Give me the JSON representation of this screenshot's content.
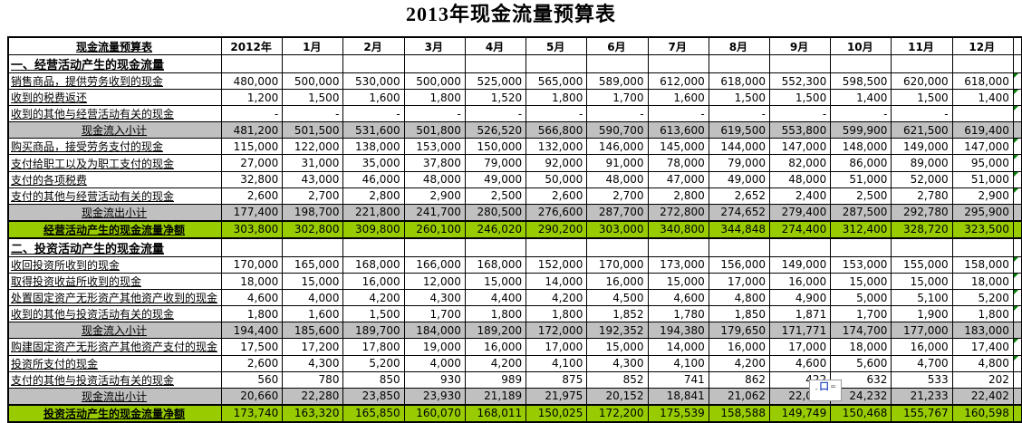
{
  "title": "2013年现金流量预算表",
  "colors": {
    "subtotal_bg": "#C0C0C0",
    "net_bg": "#99CC00",
    "flag_triangle": "#008000",
    "border": "#000000"
  },
  "overlay": {
    "left_mark": "ˍ",
    "glyph": "口",
    "right_mark": "="
  },
  "table": {
    "corner_label": "现金流量预算表",
    "columns": [
      "2012年",
      "1月",
      "2月",
      "3月",
      "4月",
      "5月",
      "6月",
      "7月",
      "8月",
      "9月",
      "10月",
      "11月",
      "12月"
    ],
    "rows": [
      {
        "type": "section",
        "label": "一、经营活动产生的现金流量",
        "flag": false,
        "values": [
          "",
          "",
          "",
          "",
          "",
          "",
          "",
          "",
          "",
          "",
          "",
          "",
          ""
        ]
      },
      {
        "type": "data",
        "label": "销售商品，提供劳务收到的现金",
        "flag": true,
        "values": [
          "480,000",
          "500,000",
          "530,000",
          "500,000",
          "525,000",
          "565,000",
          "589,000",
          "612,000",
          "618,000",
          "552,300",
          "598,500",
          "620,000",
          "618,000"
        ]
      },
      {
        "type": "data",
        "label": "收到的税费返还",
        "flag": true,
        "values": [
          "1,200",
          "1,500",
          "1,600",
          "1,800",
          "1,520",
          "1,800",
          "1,700",
          "1,600",
          "1,500",
          "1,500",
          "1,400",
          "1,500",
          "1,400"
        ]
      },
      {
        "type": "data",
        "label": "收到的其他与经营活动有关的现金",
        "flag": true,
        "values": [
          "-",
          "-",
          "-",
          "-",
          "-",
          "-",
          "-",
          "-",
          "-",
          "-",
          "-",
          "-",
          ""
        ]
      },
      {
        "type": "subtotal",
        "label": "现金流入小计",
        "flag": false,
        "values": [
          "481,200",
          "501,500",
          "531,600",
          "501,800",
          "526,520",
          "566,800",
          "590,700",
          "613,600",
          "619,500",
          "553,800",
          "599,900",
          "621,500",
          "619,400"
        ]
      },
      {
        "type": "data",
        "label": "购买商品，接受劳务支付的现金",
        "flag": true,
        "values": [
          "115,000",
          "122,000",
          "138,000",
          "153,000",
          "150,000",
          "132,000",
          "146,000",
          "145,000",
          "144,000",
          "147,000",
          "148,000",
          "149,000",
          "147,000"
        ]
      },
      {
        "type": "data",
        "label": "支付给职工以及为职工支付的现金",
        "flag": true,
        "values": [
          "27,000",
          "31,000",
          "35,000",
          "37,800",
          "79,000",
          "92,000",
          "91,000",
          "78,000",
          "79,000",
          "82,000",
          "86,000",
          "89,000",
          "95,000"
        ]
      },
      {
        "type": "data",
        "label": "支付的各项税费",
        "flag": true,
        "values": [
          "32,800",
          "43,000",
          "46,000",
          "48,000",
          "49,000",
          "50,000",
          "48,000",
          "47,000",
          "49,000",
          "48,000",
          "51,000",
          "52,000",
          "51,000"
        ]
      },
      {
        "type": "data",
        "label": "支付的其他与经营活动有关的现金",
        "flag": true,
        "values": [
          "2,600",
          "2,700",
          "2,800",
          "2,900",
          "2,500",
          "2,600",
          "2,700",
          "2,800",
          "2,652",
          "2,400",
          "2,500",
          "2,780",
          "2,900"
        ]
      },
      {
        "type": "subtotal",
        "label": "现金流出小计",
        "flag": false,
        "values": [
          "177,400",
          "198,700",
          "221,800",
          "241,700",
          "280,500",
          "276,600",
          "287,700",
          "272,800",
          "274,652",
          "279,400",
          "287,500",
          "292,780",
          "295,900"
        ]
      },
      {
        "type": "net",
        "label": "经营活动产生的现金流量净额",
        "flag": false,
        "values": [
          "303,800",
          "302,800",
          "309,800",
          "260,100",
          "246,020",
          "290,200",
          "303,000",
          "340,800",
          "344,848",
          "274,400",
          "312,400",
          "328,720",
          "323,500"
        ]
      },
      {
        "type": "section",
        "label": "二、投资活动产生的现金流量",
        "flag": false,
        "values": [
          "",
          "",
          "",
          "",
          "",
          "",
          "",
          "",
          "",
          "",
          "",
          "",
          ""
        ]
      },
      {
        "type": "data",
        "label": "收回投资所收到的现金",
        "flag": true,
        "values": [
          "170,000",
          "165,000",
          "168,000",
          "166,000",
          "168,000",
          "152,000",
          "170,000",
          "173,000",
          "156,000",
          "149,000",
          "153,000",
          "155,000",
          "158,000"
        ]
      },
      {
        "type": "data",
        "label": "取得投资收益所收到的现金",
        "flag": true,
        "values": [
          "18,000",
          "15,000",
          "16,000",
          "12,000",
          "15,000",
          "14,000",
          "16,000",
          "15,000",
          "17,000",
          "16,000",
          "15,000",
          "15,000",
          "18,000"
        ]
      },
      {
        "type": "data",
        "label": "处置固定资产无形资产其他资产收到的现金",
        "flag": true,
        "values": [
          "4,600",
          "4,000",
          "4,200",
          "4,300",
          "4,400",
          "4,200",
          "4,500",
          "4,600",
          "4,800",
          "4,900",
          "5,000",
          "5,100",
          "5,200"
        ]
      },
      {
        "type": "data",
        "label": "收到的其他与投资活动有关的现金",
        "flag": true,
        "values": [
          "1,800",
          "1,600",
          "1,500",
          "1,700",
          "1,800",
          "1,800",
          "1,852",
          "1,780",
          "1,850",
          "1,871",
          "1,700",
          "1,900",
          "1,800"
        ]
      },
      {
        "type": "subtotal",
        "label": "现金流入小计",
        "flag": false,
        "values": [
          "194,400",
          "185,600",
          "189,700",
          "184,000",
          "189,200",
          "172,000",
          "192,352",
          "194,380",
          "179,650",
          "171,771",
          "174,700",
          "177,000",
          "183,000"
        ]
      },
      {
        "type": "data",
        "label": "购建固定资产无形资产其他资产支付的现金",
        "flag": true,
        "values": [
          "17,500",
          "17,200",
          "17,800",
          "19,000",
          "16,000",
          "17,000",
          "15,000",
          "14,000",
          "16,000",
          "17,000",
          "18,000",
          "16,000",
          "17,400"
        ]
      },
      {
        "type": "data",
        "label": "投资所支付的现金",
        "flag": true,
        "values": [
          "2,600",
          "4,300",
          "5,200",
          "4,000",
          "4,200",
          "4,100",
          "4,300",
          "4,100",
          "4,200",
          "4,600",
          "5,600",
          "4,700",
          "4,800"
        ]
      },
      {
        "type": "data",
        "label": "支付的其他与投资活动有关的现金",
        "flag": false,
        "values": [
          "560",
          "780",
          "850",
          "930",
          "989",
          "875",
          "852",
          "741",
          "862",
          "422",
          "632",
          "533",
          "202"
        ]
      },
      {
        "type": "subtotal",
        "label": "现金流出小计",
        "flag": false,
        "values": [
          "20,660",
          "22,280",
          "23,850",
          "23,930",
          "21,189",
          "21,975",
          "20,152",
          "18,841",
          "21,062",
          "22,022",
          "24,232",
          "21,233",
          "22,402"
        ]
      },
      {
        "type": "net",
        "label": "投资活动产生的现金流量净额",
        "flag": false,
        "values": [
          "173,740",
          "163,320",
          "165,850",
          "160,070",
          "168,011",
          "150,025",
          "172,200",
          "175,539",
          "158,588",
          "149,749",
          "150,468",
          "155,767",
          "160,598"
        ]
      }
    ]
  }
}
